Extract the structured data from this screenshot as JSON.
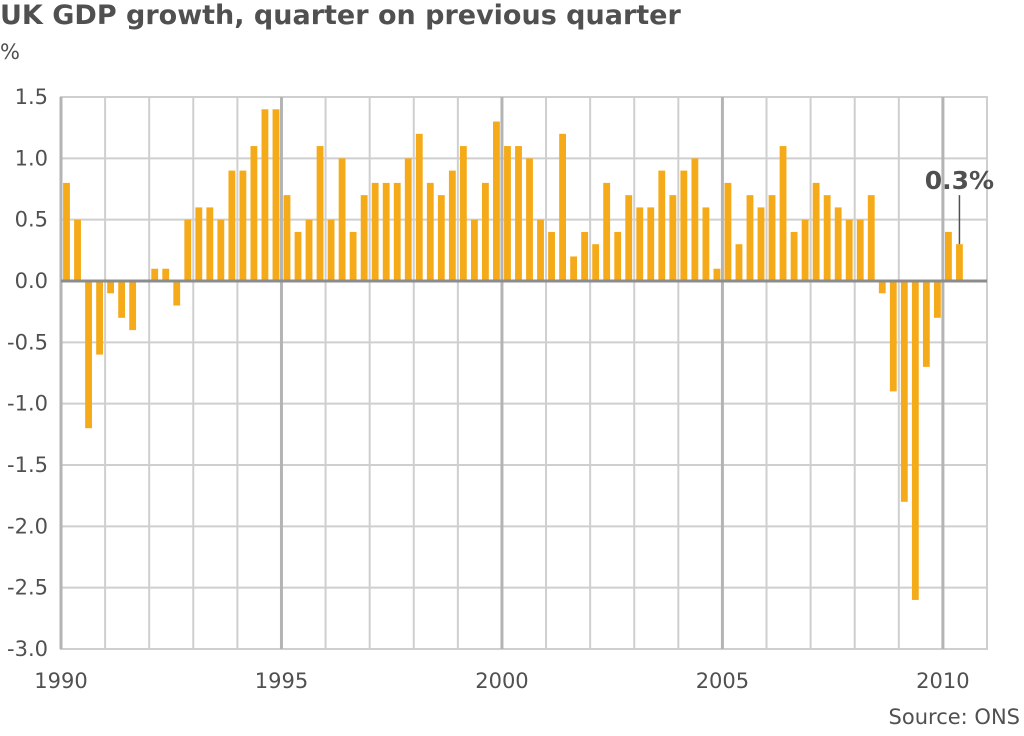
{
  "chart_data": {
    "type": "bar",
    "title": "UK GDP growth, quarter on previous quarter",
    "ylabel": "%",
    "xlabel": "",
    "source": "Source: ONS",
    "ylim": [
      -3.0,
      1.5
    ],
    "xlim": [
      1990,
      2011
    ],
    "grid": true,
    "bar_color": "#f5ab19",
    "yticks": [
      {
        "value": 1.5,
        "label": "1.5"
      },
      {
        "value": 1.0,
        "label": "1.0"
      },
      {
        "value": 0.5,
        "label": "0.5"
      },
      {
        "value": 0.0,
        "label": "0.0"
      },
      {
        "value": -0.5,
        "label": "-0.5"
      },
      {
        "value": -1.0,
        "label": "-1.0"
      },
      {
        "value": -1.5,
        "label": "-1.5"
      },
      {
        "value": -2.0,
        "label": "-2.0"
      },
      {
        "value": -2.5,
        "label": "-2.5"
      },
      {
        "value": -3.0,
        "label": "-3.0"
      }
    ],
    "xticks": [
      {
        "value": 1990,
        "label": "1990"
      },
      {
        "value": 1995,
        "label": "1995"
      },
      {
        "value": 2000,
        "label": "2000"
      },
      {
        "value": 2005,
        "label": "2005"
      },
      {
        "value": 2010,
        "label": "2010"
      }
    ],
    "start_year": 1990,
    "values": [
      0.8,
      0.5,
      -1.2,
      -0.6,
      -0.1,
      -0.3,
      -0.4,
      0.0,
      0.1,
      0.1,
      -0.2,
      0.5,
      0.6,
      0.6,
      0.5,
      0.9,
      0.9,
      1.1,
      1.4,
      1.4,
      0.7,
      0.4,
      0.5,
      1.1,
      0.5,
      1.0,
      0.4,
      0.7,
      0.8,
      0.8,
      0.8,
      1.0,
      1.2,
      0.8,
      0.7,
      0.9,
      1.1,
      0.5,
      0.8,
      1.3,
      1.1,
      1.1,
      1.0,
      0.5,
      0.4,
      1.2,
      0.2,
      0.4,
      0.3,
      0.8,
      0.4,
      0.7,
      0.6,
      0.6,
      0.9,
      0.7,
      0.9,
      1.0,
      0.6,
      0.1,
      0.8,
      0.3,
      0.7,
      0.6,
      0.7,
      1.1,
      0.4,
      0.5,
      0.8,
      0.7,
      0.6,
      0.5,
      0.5,
      0.7,
      -0.1,
      -0.9,
      -1.8,
      -2.6,
      -0.7,
      -0.3,
      0.4,
      0.3
    ],
    "annotation": {
      "label": "0.3%",
      "index": 81
    }
  }
}
